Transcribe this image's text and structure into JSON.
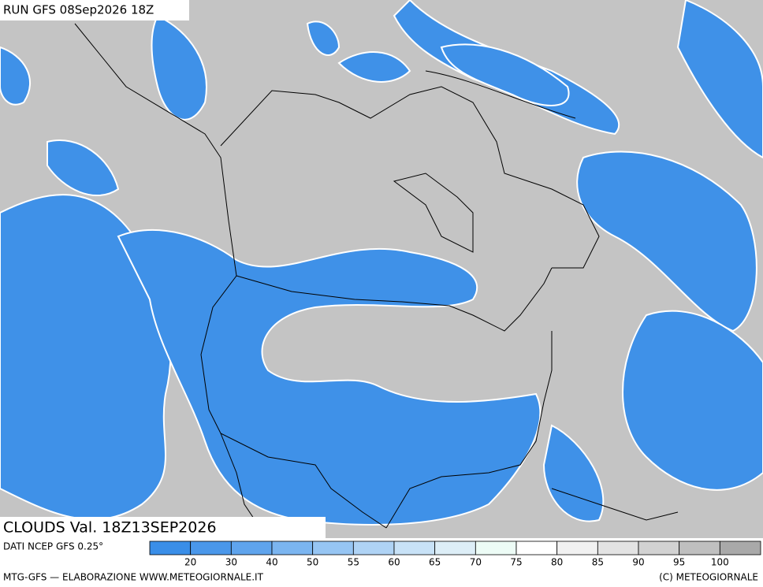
{
  "header": {
    "run": "RUN GFS 08Sep2026 18Z",
    "field": "CLOUDS Val. 18Z13SEP2026"
  },
  "legend": {
    "source": "DATI NCEP GFS 0.25°",
    "labels": [
      20,
      30,
      40,
      50,
      55,
      60,
      65,
      70,
      75,
      80,
      85,
      90,
      95,
      100
    ],
    "colors": [
      "#3a8ee8",
      "#4a97ea",
      "#5fa4ed",
      "#7bb5f0",
      "#96c5f3",
      "#afd3f5",
      "#c8e2f7",
      "#ddeef7",
      "#edfcf6",
      "#ffffff",
      "#f1f1f1",
      "#e3e3e3",
      "#d2d2d2",
      "#bfbfbf",
      "#a9a9a9"
    ]
  },
  "footer": {
    "left": "MTG-GFS — ELABORAZIONE WWW.METEOGIORNALE.IT",
    "right": "(C) METEOGIORNALE"
  }
}
